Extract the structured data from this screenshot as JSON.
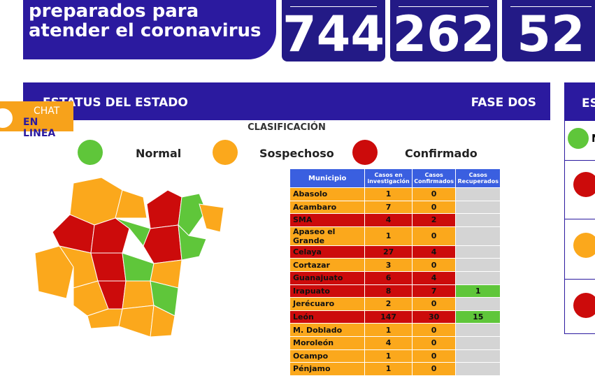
{
  "banner": {
    "lines": [
      "preparados para",
      "atender el coronavirus"
    ]
  },
  "counters": [
    744,
    262,
    52
  ],
  "status_bar": {
    "title": "ESTATUS DEL ESTADO",
    "phase": "FASE DOS"
  },
  "classification": {
    "title": "CLASIFICACIÓN",
    "legend": [
      {
        "label": "Normal",
        "color": "#5fc63a"
      },
      {
        "label": "Sospechoso",
        "color": "#fba81c"
      },
      {
        "label": "Confirmado",
        "color": "#cc0b0b"
      }
    ]
  },
  "table": {
    "headers": [
      "Municipio",
      "Casos en investigación",
      "Casos Confirmados",
      "Casos Recuperados"
    ],
    "rows": [
      [
        "Abasolo",
        1,
        0,
        null
      ],
      [
        "Acambaro",
        7,
        0,
        null
      ],
      [
        "SMA",
        4,
        2,
        null
      ],
      [
        "Apaseo el Grande",
        1,
        0,
        null
      ],
      [
        "Celaya",
        27,
        4,
        null
      ],
      [
        "Cortazar",
        3,
        0,
        null
      ],
      [
        "Guanajuato",
        6,
        4,
        null
      ],
      [
        "Irapuato",
        8,
        7,
        1
      ],
      [
        "Jerécuaro",
        2,
        0,
        null
      ],
      [
        "León",
        147,
        30,
        15
      ],
      [
        "M. Doblado",
        1,
        0,
        null
      ],
      [
        "Moroleón",
        4,
        0,
        null
      ],
      [
        "Ocampo",
        1,
        0,
        null
      ],
      [
        "Pénjamo",
        1,
        0,
        null
      ]
    ],
    "row_colors": [
      "#fba81c",
      "#fba81c",
      "#cc0b0b",
      "#fba81c",
      "#cc0b0b",
      "#fba81c",
      "#cc0b0b",
      "#cc0b0b",
      "#fba81c",
      "#cc0b0b",
      "#fba81c",
      "#fba81c",
      "#fba81c",
      "#fba81c"
    ]
  },
  "side_panel": {
    "title": "ES",
    "item": "N"
  },
  "chat": {
    "line1": "CHAT",
    "line2": "EN LINEA"
  }
}
